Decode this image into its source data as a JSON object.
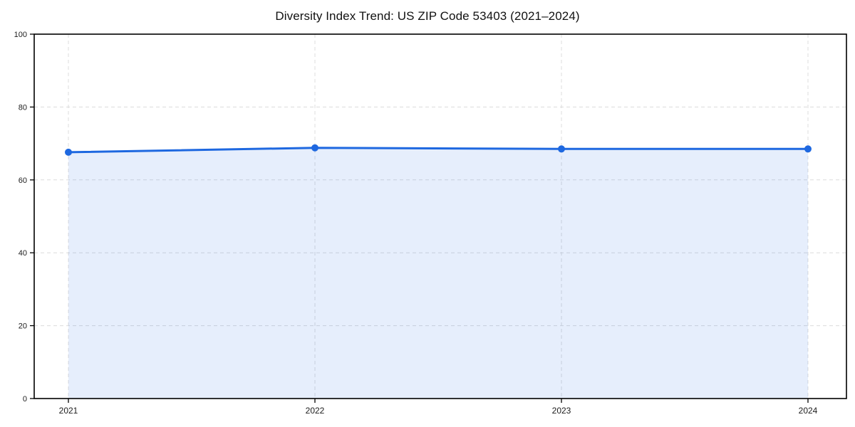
{
  "chart_data": {
    "type": "area",
    "title": "Diversity Index Trend: US ZIP Code 53403 (2021–2024)",
    "categories": [
      "2021",
      "2022",
      "2023",
      "2024"
    ],
    "series": [
      {
        "name": "Diversity Index",
        "values": [
          67.6,
          68.8,
          68.5,
          68.5
        ]
      }
    ],
    "xlabel": "",
    "ylabel": "",
    "ylim": [
      0,
      100
    ],
    "yticks": [
      0,
      20,
      40,
      60,
      80,
      100
    ],
    "grid": true,
    "grid_style": "dashed",
    "legend_position": "none",
    "marker": "circle",
    "colors": {
      "line": "#1e68e0",
      "marker": "#1e68e0",
      "area": "#1e68e0",
      "area_opacity": 0.11,
      "grid": "#dcdcdc",
      "spine": "#000000",
      "tick_label": "#1c1c1c",
      "title": "#111111",
      "background": "#ffffff"
    }
  }
}
